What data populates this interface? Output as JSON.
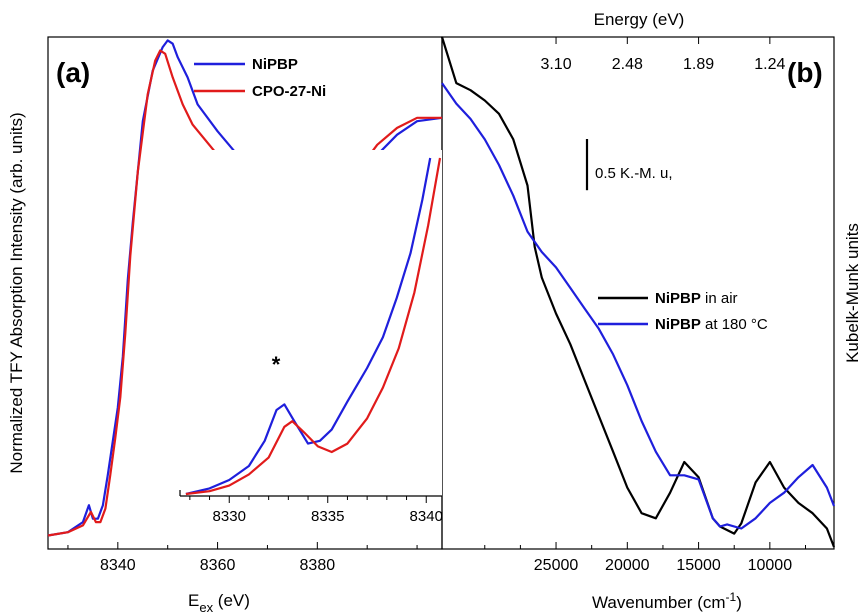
{
  "colors": {
    "blue": "#1f1fdc",
    "red": "#e11b1b",
    "black": "#000000"
  },
  "chart_data": [
    {
      "panel": "(a)",
      "type": "line",
      "xlabel_main": "E",
      "xlabel_sub": "ex",
      "xlabel_unit": " (eV)",
      "ylabel": "Normalized TFY Absorption Intensity (arb. units)",
      "xlim": [
        8326,
        8405
      ],
      "ylim": [
        -0.02,
        1.5
      ],
      "xticks": [
        8340,
        8360,
        8380
      ],
      "yticks_shown": false,
      "legend": {
        "placement": "top-right"
      },
      "series": [
        {
          "name": "NiPBP",
          "color": "#1f1fdc",
          "x": [
            8326,
            8330,
            8333,
            8334.2,
            8335,
            8336,
            8337,
            8338,
            8339,
            8340,
            8341,
            8342,
            8343,
            8345,
            8347,
            8349,
            8350,
            8351,
            8352,
            8354,
            8356,
            8360,
            8364,
            8368,
            8372,
            8376,
            8380,
            8384,
            8388,
            8392,
            8396,
            8400,
            8405
          ],
          "y": [
            0.02,
            0.03,
            0.06,
            0.11,
            0.07,
            0.07,
            0.11,
            0.2,
            0.3,
            0.4,
            0.55,
            0.78,
            0.95,
            1.25,
            1.4,
            1.47,
            1.49,
            1.48,
            1.44,
            1.38,
            1.3,
            1.22,
            1.15,
            1.1,
            1.07,
            1.0,
            0.96,
            0.98,
            1.05,
            1.15,
            1.21,
            1.25,
            1.26
          ]
        },
        {
          "name": "CPO-27-Ni",
          "color": "#e11b1b",
          "x": [
            8326,
            8330,
            8333,
            8334.6,
            8335.6,
            8336.5,
            8337.5,
            8338.5,
            8339.5,
            8340.5,
            8341.5,
            8342.5,
            8344,
            8346,
            8347.5,
            8348.5,
            8349.5,
            8351,
            8353,
            8355,
            8360,
            8364,
            8368,
            8372,
            8376,
            8380,
            8384,
            8388,
            8392,
            8396,
            8400,
            8405
          ],
          "y": [
            0.02,
            0.03,
            0.05,
            0.09,
            0.06,
            0.06,
            0.1,
            0.2,
            0.31,
            0.43,
            0.62,
            0.85,
            1.1,
            1.33,
            1.43,
            1.46,
            1.45,
            1.38,
            1.3,
            1.24,
            1.15,
            1.1,
            1.06,
            1.02,
            0.99,
            0.98,
            1.02,
            1.1,
            1.18,
            1.23,
            1.26,
            1.26
          ]
        }
      ],
      "inset": {
        "xlim": [
          8327.5,
          8340.8
        ],
        "xticks": [
          8330,
          8335,
          8340
        ],
        "annotation": "*",
        "series": [
          {
            "name": "NiPBP",
            "color": "#1f1fdc",
            "x": [
              8327.8,
              8329,
              8330,
              8331,
              8331.8,
              8332.4,
              8332.8,
              8333.3,
              8334,
              8334.6,
              8335.2,
              8336,
              8337,
              8337.8,
              8338.5,
              8339.2,
              8339.8,
              8340.2
            ],
            "y": [
              0.0,
              0.02,
              0.05,
              0.1,
              0.19,
              0.3,
              0.32,
              0.26,
              0.18,
              0.19,
              0.23,
              0.33,
              0.45,
              0.56,
              0.7,
              0.86,
              1.05,
              1.2
            ]
          },
          {
            "name": "CPO-27-Ni",
            "color": "#e11b1b",
            "x": [
              8327.8,
              8329,
              8330,
              8331,
              8332,
              8332.8,
              8333.2,
              8333.8,
              8334.5,
              8335.2,
              8336,
              8337,
              8337.8,
              8338.6,
              8339.4,
              8340.1,
              8340.7
            ],
            "y": [
              0.0,
              0.01,
              0.03,
              0.07,
              0.13,
              0.24,
              0.26,
              0.22,
              0.17,
              0.15,
              0.18,
              0.27,
              0.38,
              0.52,
              0.72,
              0.96,
              1.2
            ]
          }
        ]
      }
    },
    {
      "panel": "(b)",
      "type": "line",
      "xlabel": "Wavenumber (cm",
      "xlabel_sup": "-1",
      "xlabel_close": ")",
      "ylabel": "Kubelk-Munk units",
      "top_axis_label": "Energy (eV)",
      "top_ticks": [
        "3.10",
        "2.48",
        "1.89",
        "1.24"
      ],
      "top_tick_wavenumbers": [
        25000,
        20000,
        15000,
        10000
      ],
      "xlim": [
        33000,
        5500
      ],
      "ylim": [
        0,
        5.0
      ],
      "xticks": [
        25000,
        20000,
        15000,
        10000
      ],
      "scale_bar_label": "0.5 K.-M. u,",
      "scale_bar_value": 0.5,
      "legend": {
        "placement": "center-right"
      },
      "series": [
        {
          "name": "NiPBP",
          "suffix": " in air",
          "color": "#000000",
          "x": [
            33000,
            32000,
            31000,
            30000,
            29000,
            28000,
            27000,
            26500,
            26000,
            25000,
            24000,
            23000,
            22000,
            21000,
            20000,
            19000,
            18000,
            17000,
            16000,
            15000,
            14000,
            13500,
            12500,
            12000,
            11000,
            10000,
            9000,
            8000,
            7000,
            6000,
            5500
          ],
          "y": [
            5.0,
            4.55,
            4.48,
            4.38,
            4.25,
            4.0,
            3.55,
            2.95,
            2.65,
            2.3,
            2.0,
            1.65,
            1.3,
            0.95,
            0.6,
            0.35,
            0.3,
            0.55,
            0.85,
            0.7,
            0.3,
            0.22,
            0.15,
            0.25,
            0.65,
            0.85,
            0.6,
            0.45,
            0.35,
            0.2,
            0.02
          ]
        },
        {
          "name": "NiPBP",
          "suffix": " at 180 °C",
          "color": "#1f1fdc",
          "x": [
            33000,
            32000,
            31000,
            30000,
            29000,
            28000,
            27000,
            26000,
            25000,
            24000,
            23000,
            22000,
            21000,
            20000,
            19000,
            18000,
            17000,
            16000,
            15000,
            14000,
            13500,
            13000,
            12000,
            11000,
            10000,
            9000,
            8000,
            7000,
            6000,
            5500
          ],
          "y": [
            4.55,
            4.35,
            4.2,
            4.0,
            3.75,
            3.45,
            3.1,
            2.9,
            2.75,
            2.55,
            2.35,
            2.15,
            1.9,
            1.6,
            1.25,
            0.95,
            0.72,
            0.72,
            0.68,
            0.3,
            0.22,
            0.24,
            0.2,
            0.3,
            0.45,
            0.55,
            0.7,
            0.82,
            0.6,
            0.42
          ]
        }
      ]
    }
  ]
}
